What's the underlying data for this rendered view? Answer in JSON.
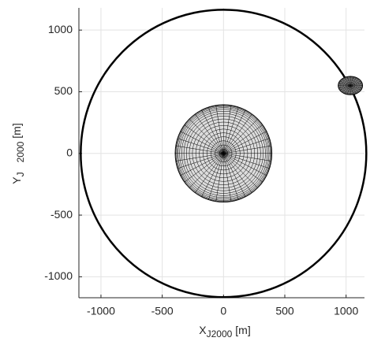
{
  "chart_data": {
    "type": "orbit-plot",
    "x_label": {
      "main": "X",
      "sub": "J2000",
      "unit": "[m]"
    },
    "y_label": {
      "main": "Y",
      "sub": "J",
      "sub2": "2000",
      "unit": "[m]"
    },
    "xlim": [
      -1180,
      1150
    ],
    "ylim": [
      -1170,
      1180
    ],
    "xticks": [
      -1000,
      -500,
      0,
      500,
      1000
    ],
    "yticks": [
      -1000,
      -500,
      0,
      500,
      1000
    ],
    "grid": true,
    "orbit": {
      "center": [
        0,
        0
      ],
      "radius": 1165,
      "color": "#000000"
    },
    "bodies": [
      {
        "center": [
          0,
          0
        ],
        "radius": [
          395,
          395
        ],
        "color": "#dcdcdc"
      },
      {
        "center": [
          1035,
          550
        ],
        "radius": [
          100,
          75
        ],
        "color": "#8a8a8a"
      }
    ]
  }
}
